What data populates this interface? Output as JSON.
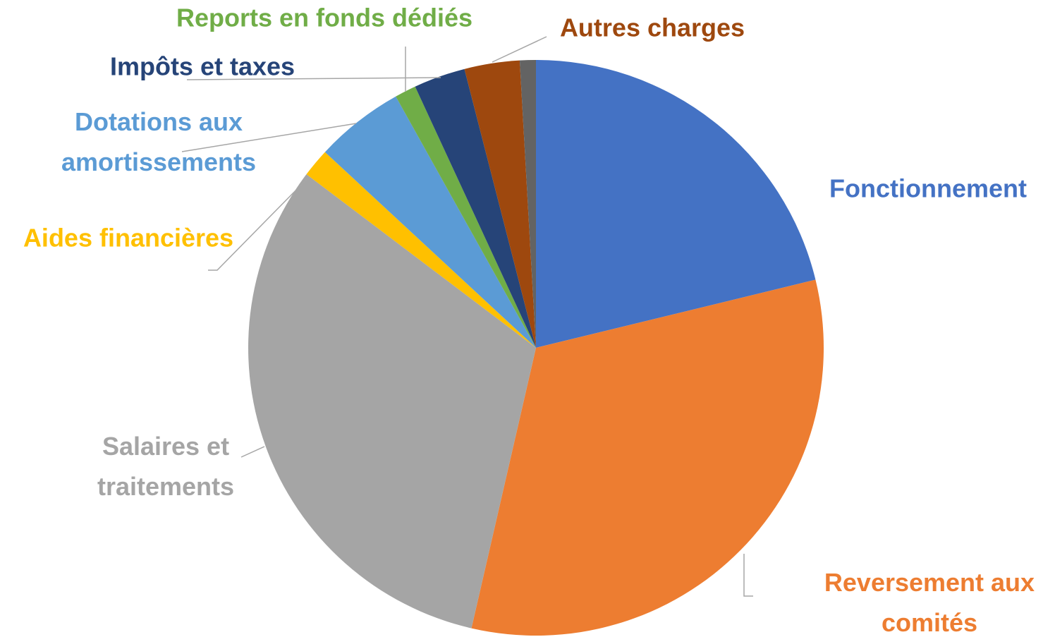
{
  "chart_data": {
    "type": "pie",
    "categories": [
      "Fonctionnement",
      "Reversement aux comités",
      "Salaires et traitements",
      "Aides financières",
      "Dotations aux amortissements",
      "Reports en fonds dédiés",
      "Impôts et taxes",
      "Autres charges",
      null
    ],
    "values": [
      21.2,
      32.4,
      31.7,
      1.6,
      5.0,
      1.2,
      2.9,
      3.1,
      0.9
    ],
    "colors": [
      "#4472c4",
      "#ed7d31",
      "#a5a5a5",
      "#ffc000",
      "#5b9bd5",
      "#70ad47",
      "#264478",
      "#9e480e",
      "#636363"
    ],
    "label_colors": [
      "#4472c4",
      "#ed7d31",
      "#a5a5a5",
      "#ffc000",
      "#5b9bd5",
      "#70ad47",
      "#264478",
      "#9e480e",
      "#636363"
    ]
  }
}
